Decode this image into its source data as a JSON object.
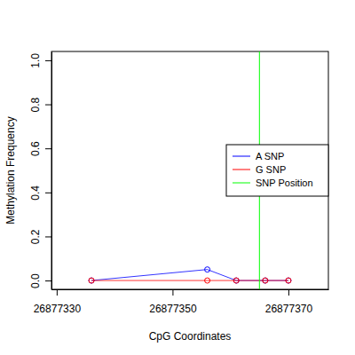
{
  "chart_data": {
    "type": "line",
    "x_label": "CpG Coordinates",
    "y_label": "Methylation Frequency",
    "x": [
      26877336,
      26877356,
      26877361,
      26877366,
      26877370
    ],
    "series": [
      {
        "name": "A SNP",
        "color": "#0000ff",
        "marker": "circle",
        "line_style": "solid",
        "values": [
          0,
          0.05,
          0,
          0,
          0
        ]
      },
      {
        "name": "G SNP",
        "color": "#ff0000",
        "marker": "circle",
        "line_style": "solid",
        "values": [
          0,
          0,
          0,
          0,
          0
        ]
      }
    ],
    "snp_position": {
      "name": "SNP Position",
      "color": "#00ff00",
      "x": 26877365
    },
    "xlim": [
      26877329.1,
      26877376.9
    ],
    "xticks": [
      26877330,
      26877350,
      26877370
    ],
    "ylim": [
      -0.04,
      1.04
    ],
    "yticks": [
      {
        "value": 0,
        "label": "0.0"
      },
      0.2,
      0.4,
      0.6,
      0.8,
      {
        "value": 1,
        "label": "1.0"
      }
    ],
    "legend": "right"
  }
}
